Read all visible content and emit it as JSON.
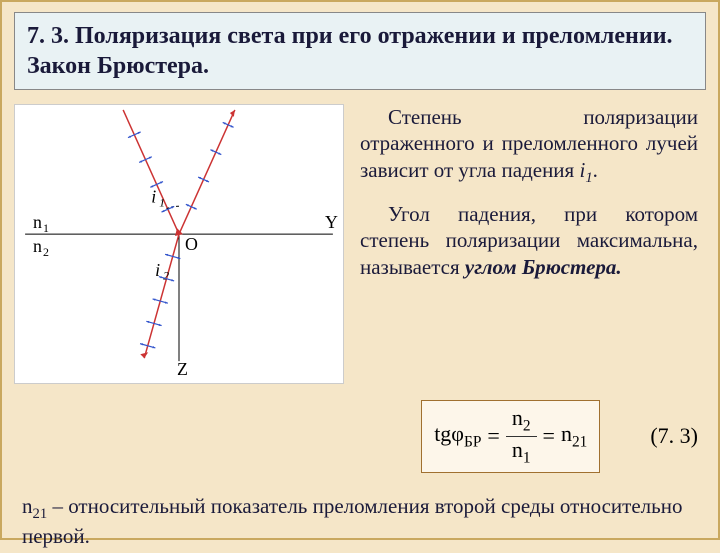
{
  "title": "7. 3. Поляризация света при его отражении и преломлении. Закон Брюстера.",
  "para1_a": "Степень поляризации отраженного и преломленного лучей зависит от угла падения ",
  "para1_i": "i",
  "para1_sub": "1",
  "para1_dot": ".",
  "para2_a": "Угол падения, при котором степень поляризации макси­мальна, называется ",
  "para2_b": "углом Брюстера.",
  "eq_tg": "tgφ",
  "eq_sub": "БР",
  "eq_eq1": "=",
  "eq_n2": "n",
  "eq_n2sub": "2",
  "eq_n1": "n",
  "eq_n1sub": "1",
  "eq_eq2": "=",
  "eq_n21": "n",
  "eq_n21sub": "21",
  "eq_num": "(7. 3)",
  "foot_a": "n",
  "foot_sub": "21",
  "foot_b": " – относительный показатель преломления второй среды относительно первой.",
  "diagram": {
    "n1_label": "n",
    "n1_sub": "1",
    "n2_label": "n",
    "n2_sub": "2",
    "O_label": "O",
    "Y_label": "Y",
    "Z_label": "Z",
    "i1_label": "i",
    "i1_sub": "1",
    "i2_label": "i",
    "i2_sub": "2",
    "ray_color": "#cc3333",
    "pol_color": "#3355cc",
    "axis_color": "#000000",
    "bg": "#ffffff"
  }
}
